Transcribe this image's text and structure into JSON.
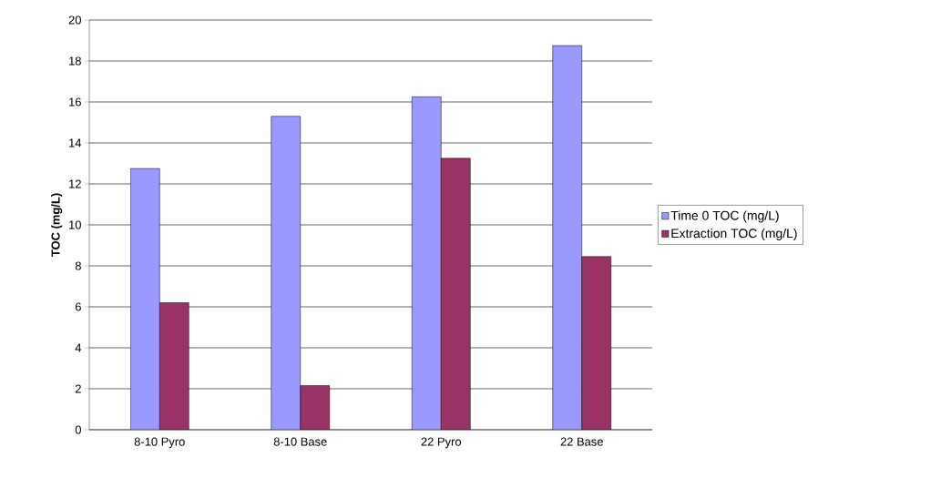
{
  "chart_data": {
    "type": "bar",
    "ylabel": "TOC (mg/L)",
    "categories": [
      "8-10 Pyro",
      "8-10 Base",
      "22 Pyro",
      "22 Base"
    ],
    "series": [
      {
        "name": "Time 0 TOC (mg/L)",
        "color": "#9999ff",
        "values": [
          12.75,
          15.3,
          16.25,
          18.75
        ]
      },
      {
        "name": "Extraction TOC (mg/L)",
        "color": "#993366",
        "values": [
          6.2,
          2.15,
          13.25,
          8.45
        ]
      }
    ],
    "ylim": [
      0,
      20
    ],
    "yticks": [
      0,
      2,
      4,
      6,
      8,
      10,
      12,
      14,
      16,
      18,
      20
    ],
    "grid": "y",
    "legend": "right"
  }
}
